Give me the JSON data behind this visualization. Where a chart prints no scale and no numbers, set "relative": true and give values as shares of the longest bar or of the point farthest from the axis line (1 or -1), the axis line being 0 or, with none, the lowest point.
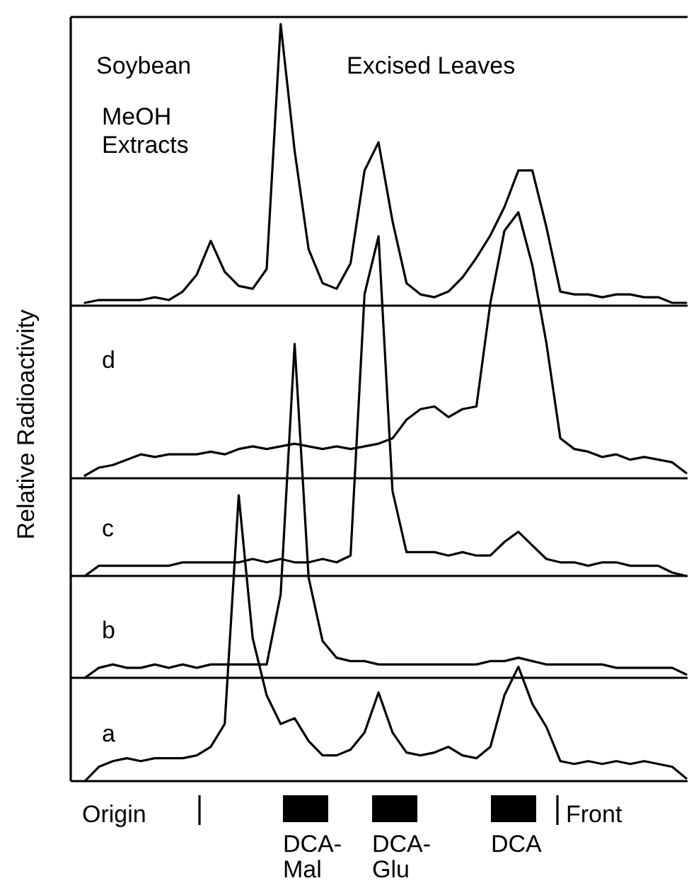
{
  "chart_data": [
    {
      "type": "line",
      "relative": true,
      "tick_labels": false,
      "ylabel": "Relative Radioactivity",
      "annotations": [
        "Soybean",
        "Excised Leaves",
        "MeOH Extracts"
      ],
      "categories": [
        null,
        null,
        null,
        null,
        null,
        null,
        null,
        null,
        null,
        null,
        null,
        null,
        null,
        null,
        null,
        null,
        null,
        null,
        null,
        null,
        null,
        null,
        null,
        null,
        null,
        null,
        null,
        null,
        null,
        null,
        null,
        null,
        null,
        null,
        null,
        null,
        null,
        null,
        null,
        null,
        null,
        null,
        null,
        null
      ],
      "series": [
        {
          "color": "#000000",
          "values": [
            0.01,
            0.02,
            0.02,
            0.02,
            0.02,
            0.03,
            0.02,
            0.05,
            0.11,
            0.23,
            0.12,
            0.07,
            0.06,
            0.13,
            1,
            0.55,
            0.2,
            0.08,
            0.06,
            0.15,
            0.48,
            0.58,
            0.3,
            0.08,
            0.04,
            0.03,
            0.05,
            0.1,
            0.17,
            0.25,
            0.35,
            0.48,
            0.48,
            0.28,
            0.05,
            0.04,
            0.04,
            0.03,
            0.04,
            0.04,
            0.03,
            0.03,
            0.01,
            0.01
          ]
        }
      ]
    },
    {
      "type": "line",
      "relative": true,
      "tick_labels": false,
      "title": "d",
      "categories": [
        null,
        null,
        null,
        null,
        null,
        null,
        null,
        null,
        null,
        null,
        null,
        null,
        null,
        null,
        null,
        null,
        null,
        null,
        null,
        null,
        null,
        null,
        null,
        null,
        null,
        null,
        null,
        null,
        null,
        null,
        null,
        null,
        null,
        null,
        null,
        null,
        null,
        null,
        null,
        null,
        null,
        null,
        null,
        null
      ],
      "series": [
        {
          "color": "#000000",
          "values": [
            0.01,
            0.04,
            0.05,
            0.07,
            0.09,
            0.08,
            0.09,
            0.09,
            0.09,
            0.1,
            0.09,
            0.11,
            0.12,
            0.11,
            0.12,
            0.13,
            0.12,
            0.11,
            0.12,
            0.11,
            0.12,
            0.13,
            0.15,
            0.22,
            0.26,
            0.27,
            0.23,
            0.26,
            0.27,
            0.66,
            0.93,
            1,
            0.8,
            0.51,
            0.15,
            0.11,
            0.1,
            0.08,
            0.09,
            0.07,
            0.08,
            0.07,
            0.06,
            0.02
          ]
        }
      ]
    },
    {
      "type": "line",
      "relative": true,
      "tick_labels": false,
      "title": "c",
      "categories": [
        null,
        null,
        null,
        null,
        null,
        null,
        null,
        null,
        null,
        null,
        null,
        null,
        null,
        null,
        null,
        null,
        null,
        null,
        null,
        null,
        null,
        null,
        null,
        null,
        null,
        null,
        null,
        null,
        null,
        null,
        null,
        null,
        null,
        null,
        null,
        null,
        null,
        null,
        null,
        null,
        null,
        null,
        null,
        null
      ],
      "series": [
        {
          "color": "#000000",
          "values": [
            0,
            0.03,
            0.03,
            0.03,
            0.03,
            0.03,
            0.03,
            0.04,
            0.04,
            0.04,
            0.04,
            0.04,
            0.05,
            0.04,
            0.05,
            0.04,
            0.04,
            0.05,
            0.04,
            0.06,
            0.83,
            1,
            0.25,
            0.07,
            0.07,
            0.07,
            0.06,
            0.07,
            0.06,
            0.06,
            0.1,
            0.13,
            0.09,
            0.05,
            0.04,
            0.04,
            0.03,
            0.04,
            0.04,
            0.03,
            0.03,
            0.03,
            0.01,
            0
          ]
        }
      ]
    },
    {
      "type": "line",
      "relative": true,
      "tick_labels": false,
      "title": "b",
      "categories": [
        null,
        null,
        null,
        null,
        null,
        null,
        null,
        null,
        null,
        null,
        null,
        null,
        null,
        null,
        null,
        null,
        null,
        null,
        null,
        null,
        null,
        null,
        null,
        null,
        null,
        null,
        null,
        null,
        null,
        null,
        null,
        null,
        null,
        null,
        null,
        null,
        null,
        null,
        null,
        null,
        null,
        null,
        null,
        null
      ],
      "series": [
        {
          "color": "#000000",
          "values": [
            0,
            0.03,
            0.04,
            0.03,
            0.03,
            0.04,
            0.03,
            0.04,
            0.03,
            0.04,
            0.04,
            0.04,
            0.04,
            0.04,
            0.25,
            1,
            0.3,
            0.11,
            0.06,
            0.05,
            0.05,
            0.04,
            0.04,
            0.04,
            0.04,
            0.04,
            0.04,
            0.04,
            0.04,
            0.05,
            0.05,
            0.06,
            0.05,
            0.04,
            0.04,
            0.04,
            0.04,
            0.04,
            0.03,
            0.03,
            0.03,
            0.03,
            0.03,
            0.01
          ]
        }
      ]
    },
    {
      "type": "line",
      "relative": true,
      "tick_labels": false,
      "title": "a",
      "annotations": [
        "Origin",
        "DCA-Mal",
        "DCA-Glu",
        "DCA",
        "Front"
      ],
      "categories": [
        null,
        null,
        null,
        null,
        null,
        null,
        null,
        null,
        null,
        null,
        null,
        null,
        null,
        null,
        null,
        null,
        null,
        null,
        null,
        null,
        null,
        null,
        null,
        null,
        null,
        null,
        null,
        null,
        null,
        null,
        null,
        null,
        null,
        null,
        null,
        null,
        null,
        null,
        null,
        null,
        null,
        null,
        null,
        null
      ],
      "series": [
        {
          "color": "#000000",
          "values": [
            0,
            0.05,
            0.07,
            0.08,
            0.07,
            0.08,
            0.08,
            0.08,
            0.09,
            0.12,
            0.2,
            1,
            0.5,
            0.3,
            0.2,
            0.22,
            0.14,
            0.09,
            0.09,
            0.11,
            0.17,
            0.31,
            0.17,
            0.1,
            0.09,
            0.1,
            0.12,
            0.09,
            0.08,
            0.12,
            0.3,
            0.4,
            0.27,
            0.19,
            0.07,
            0.06,
            0.07,
            0.06,
            0.07,
            0.06,
            0.07,
            0.06,
            0.05,
            0.01
          ]
        }
      ]
    }
  ]
}
